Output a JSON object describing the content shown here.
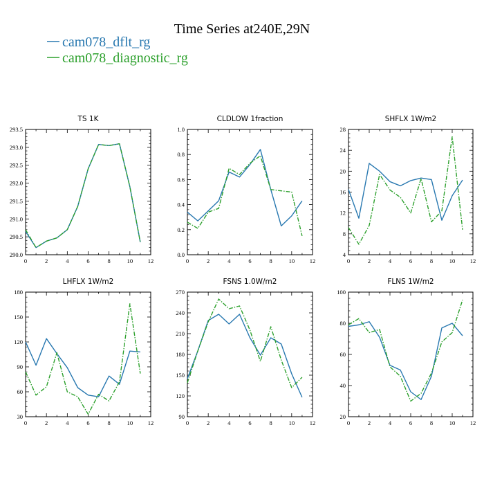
{
  "title": "Time Series at240E,29N",
  "legend": [
    {
      "name": "cam078_dflt_rg",
      "color": "#2878b0",
      "dash": "solid"
    },
    {
      "name": "cam078_diagnostic_rg",
      "color": "#2ca02c",
      "dash": "dashdot"
    }
  ],
  "chart_data": [
    {
      "type": "line",
      "title": "TS   1K",
      "x": [
        0,
        1,
        2,
        3,
        4,
        5,
        6,
        7,
        8,
        9,
        10,
        11
      ],
      "xlim": [
        0,
        12
      ],
      "xticks": [
        0,
        2,
        4,
        6,
        8,
        10,
        12
      ],
      "ylim": [
        290.0,
        293.5
      ],
      "yticks": [
        290.0,
        290.5,
        291.0,
        291.5,
        292.0,
        292.5,
        293.0,
        293.5
      ],
      "ytick_labels": [
        "290.0",
        "290.5",
        "291.0",
        "291.5",
        "292.0",
        "292.5",
        "293.0",
        "293.5"
      ],
      "series": [
        {
          "name": "cam078_dflt_rg",
          "values": [
            290.65,
            290.2,
            290.38,
            290.47,
            290.7,
            291.35,
            292.4,
            293.08,
            293.05,
            293.1,
            291.9,
            290.35
          ]
        },
        {
          "name": "cam078_diagnostic_rg",
          "values": [
            290.7,
            290.2,
            290.38,
            290.47,
            290.7,
            291.35,
            292.4,
            293.08,
            293.05,
            293.1,
            291.9,
            290.35
          ]
        }
      ]
    },
    {
      "type": "line",
      "title": "CLDLOW   1fraction",
      "x": [
        0,
        1,
        2,
        3,
        4,
        5,
        6,
        7,
        8,
        9,
        10,
        11
      ],
      "xlim": [
        0,
        12
      ],
      "xticks": [
        0,
        2,
        4,
        6,
        8,
        10,
        12
      ],
      "ylim": [
        0.0,
        1.0
      ],
      "yticks": [
        0.0,
        0.2,
        0.4,
        0.6,
        0.8,
        1.0
      ],
      "ytick_labels": [
        "0.0",
        "0.2",
        "0.4",
        "0.6",
        "0.8",
        "1.0"
      ],
      "series": [
        {
          "name": "cam078_dflt_rg",
          "values": [
            0.34,
            0.27,
            0.35,
            0.43,
            0.66,
            0.62,
            0.72,
            0.84,
            0.52,
            0.23,
            0.31,
            0.43
          ]
        },
        {
          "name": "cam078_diagnostic_rg",
          "values": [
            0.26,
            0.21,
            0.34,
            0.37,
            0.69,
            0.64,
            0.73,
            0.79,
            0.52,
            0.51,
            0.5,
            0.15
          ]
        }
      ]
    },
    {
      "type": "line",
      "title": "SHFLX   1W/m2",
      "x": [
        0,
        1,
        2,
        3,
        4,
        5,
        6,
        7,
        8,
        9,
        10,
        11
      ],
      "xlim": [
        0,
        12
      ],
      "xticks": [
        0,
        2,
        4,
        6,
        8,
        10,
        12
      ],
      "ylim": [
        4,
        28
      ],
      "yticks": [
        4,
        8,
        12,
        16,
        20,
        24,
        28
      ],
      "ytick_labels": [
        "4",
        "8",
        "12",
        "16",
        "20",
        "24",
        "28"
      ],
      "series": [
        {
          "name": "cam078_dflt_rg",
          "values": [
            16.5,
            11,
            21.5,
            20,
            18,
            17.2,
            18.2,
            18.7,
            18.4,
            10.6,
            15.3,
            18.3
          ]
        },
        {
          "name": "cam078_diagnostic_rg",
          "values": [
            9.2,
            6,
            9.6,
            19.4,
            16.4,
            15,
            12,
            18.6,
            10.3,
            12.4,
            26.6,
            8.8
          ]
        }
      ]
    },
    {
      "type": "line",
      "title": "LHFLX   1W/m2",
      "x": [
        0,
        1,
        2,
        3,
        4,
        5,
        6,
        7,
        8,
        9,
        10,
        11
      ],
      "xlim": [
        0,
        12
      ],
      "xticks": [
        0,
        2,
        4,
        6,
        8,
        10,
        12
      ],
      "ylim": [
        30,
        180
      ],
      "yticks": [
        30,
        60,
        90,
        120,
        150,
        180
      ],
      "ytick_labels": [
        "30",
        "60",
        "90",
        "120",
        "150",
        "180"
      ],
      "series": [
        {
          "name": "cam078_dflt_rg",
          "values": [
            120,
            92,
            124,
            106,
            89,
            65,
            56,
            54,
            79,
            69,
            109,
            108
          ]
        },
        {
          "name": "cam078_diagnostic_rg",
          "values": [
            84,
            56,
            66,
            107,
            60,
            54,
            33,
            57,
            49,
            72,
            166,
            82
          ]
        }
      ]
    },
    {
      "type": "line",
      "title": "FSNS   1.0W/m2",
      "x": [
        0,
        1,
        2,
        3,
        4,
        5,
        6,
        7,
        8,
        9,
        10,
        11
      ],
      "xlim": [
        0,
        12
      ],
      "xticks": [
        0,
        2,
        4,
        6,
        8,
        10,
        12
      ],
      "ylim": [
        90,
        270
      ],
      "yticks": [
        90,
        120,
        150,
        180,
        210,
        240,
        270
      ],
      "ytick_labels": [
        "90",
        "120",
        "150",
        "180",
        "210",
        "240",
        "270"
      ],
      "series": [
        {
          "name": "cam078_dflt_rg",
          "values": [
            145,
            185,
            229,
            238,
            224,
            238,
            204,
            179,
            204,
            195,
            152,
            118
          ]
        },
        {
          "name": "cam078_diagnostic_rg",
          "values": [
            139,
            185,
            227,
            260,
            246,
            250,
            215,
            170,
            220,
            172,
            132,
            147
          ]
        }
      ]
    },
    {
      "type": "line",
      "title": "FLNS   1W/m2",
      "x": [
        0,
        1,
        2,
        3,
        4,
        5,
        6,
        7,
        8,
        9,
        10,
        11
      ],
      "xlim": [
        0,
        12
      ],
      "xticks": [
        0,
        2,
        4,
        6,
        8,
        10,
        12
      ],
      "ylim": [
        20,
        100
      ],
      "yticks": [
        20,
        40,
        60,
        80,
        100
      ],
      "ytick_labels": [
        "20",
        "40",
        "60",
        "80",
        "100"
      ],
      "series": [
        {
          "name": "cam078_dflt_rg",
          "values": [
            78,
            79,
            81,
            71,
            53,
            50,
            36,
            31,
            46,
            77,
            80,
            72
          ]
        },
        {
          "name": "cam078_diagnostic_rg",
          "values": [
            79,
            83,
            74,
            76,
            52,
            46,
            30,
            35,
            48,
            68,
            74,
            95
          ]
        }
      ]
    }
  ]
}
